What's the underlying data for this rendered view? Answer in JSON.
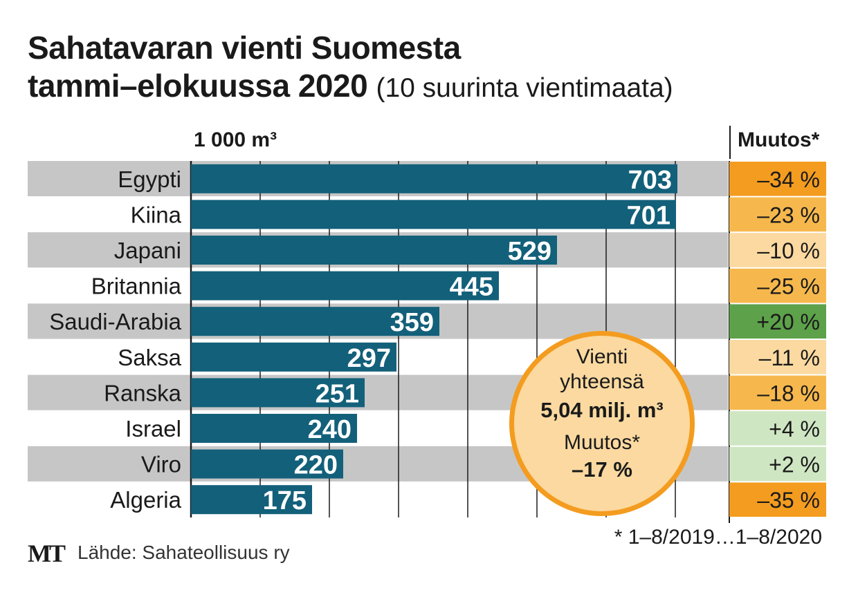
{
  "title_line1": "Sahatavaran vienti Suomesta",
  "title_line2": "tammi–elokuussa 2020",
  "subtitle": "(10 suurinta vientimaata)",
  "unit_label": "1 000 m³",
  "change_header": "Muutos*",
  "colors": {
    "bar": "#13607a",
    "stripe": "#c6c6c6",
    "grid": "#1a1a1a",
    "change_strong_neg": "#f39c1f",
    "change_mid_neg": "#f6b84d",
    "change_light_neg": "#fbd9a0",
    "change_strong_pos": "#5da14a",
    "change_light_pos": "#cfe6c3",
    "circle_fill": "#fbd9a0",
    "circle_border": "#f39c1f"
  },
  "chart_data": {
    "type": "bar",
    "orientation": "horizontal",
    "categories": [
      "Egypti",
      "Kiina",
      "Japani",
      "Britannia",
      "Saudi-Arabia",
      "Saksa",
      "Ranska",
      "Israel",
      "Viro",
      "Algeria"
    ],
    "values": [
      703,
      701,
      529,
      445,
      359,
      297,
      251,
      240,
      220,
      175
    ],
    "value_labels": [
      "703",
      "701",
      "529",
      "445",
      "359",
      "297",
      "251",
      "240",
      "220",
      "175"
    ],
    "changes": [
      "–34 %",
      "–23 %",
      "–10 %",
      "–25 %",
      "+20 %",
      "–11 %",
      "–18 %",
      "+4 %",
      "+2 %",
      "–35 %"
    ],
    "change_values": [
      -34,
      -23,
      -10,
      -25,
      20,
      -11,
      -18,
      4,
      2,
      -35
    ],
    "change_colors": [
      "#f39c1f",
      "#f6b84d",
      "#fbd9a0",
      "#f6b84d",
      "#5da14a",
      "#fbd9a0",
      "#f6b84d",
      "#cfe6c3",
      "#cfe6c3",
      "#f39c1f"
    ],
    "xlim": [
      0,
      800
    ],
    "x_gridlines": [
      100,
      200,
      300,
      400,
      500,
      600,
      700
    ],
    "grid": true,
    "xlabel": "1 000 m³",
    "ylabel": ""
  },
  "summary": {
    "line1": "Vienti",
    "line2": "yhteensä",
    "total": "5,04 milj. m³",
    "change_label": "Muutos*",
    "change_value": "–17 %"
  },
  "footnote": "* 1–8/2019…1–8/2020",
  "logo": "MT",
  "source": "Lähde: Sahateollisuus ry"
}
